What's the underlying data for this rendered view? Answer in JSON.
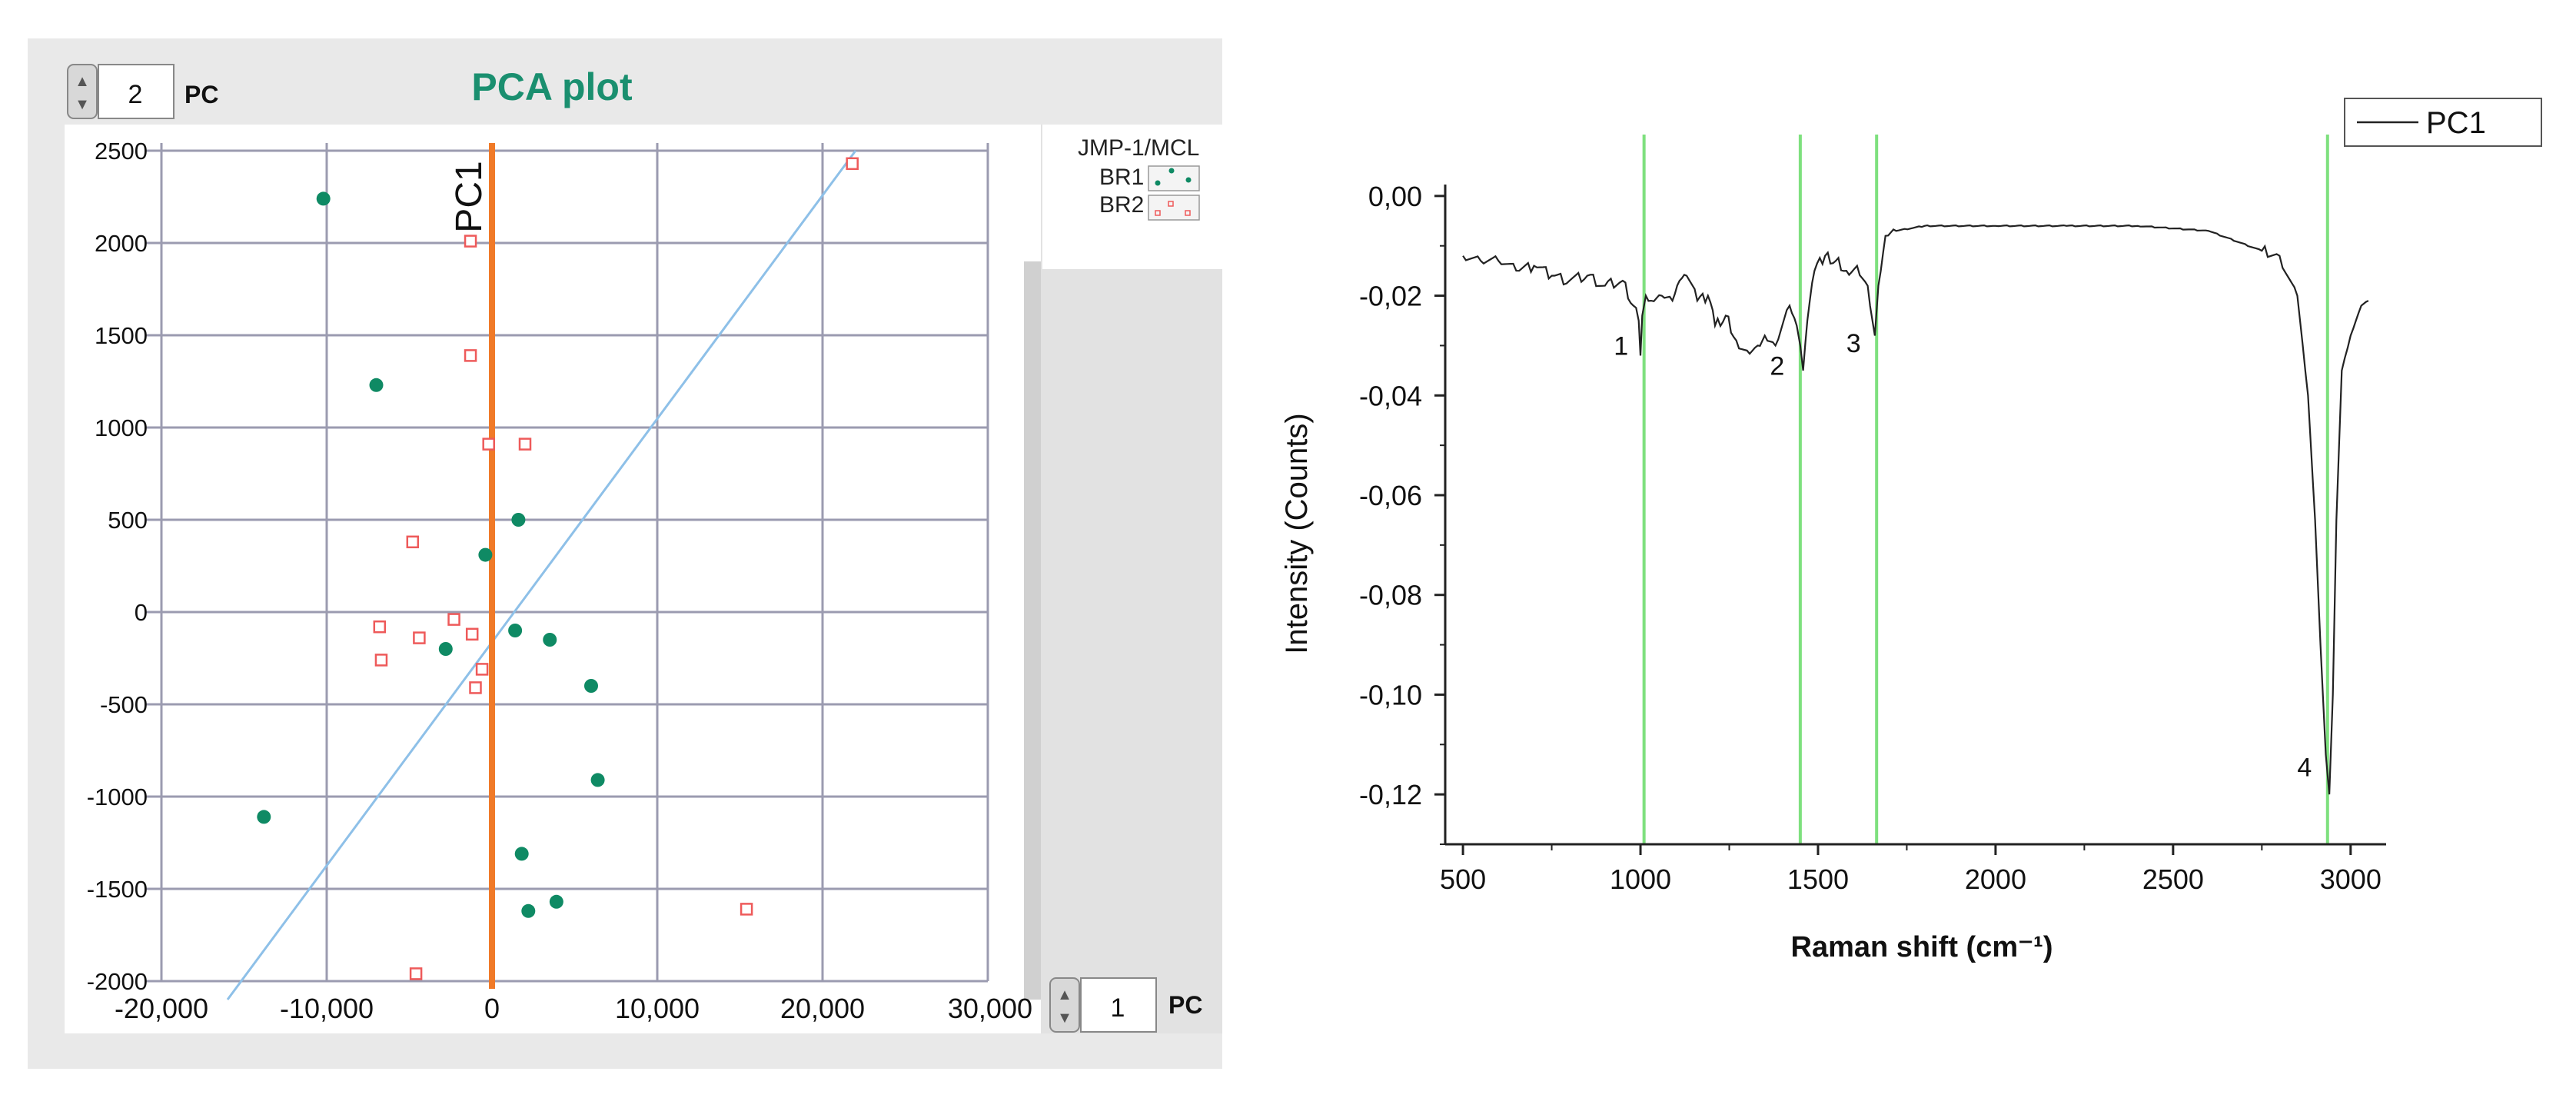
{
  "pca_panel": {
    "title": "PCA plot",
    "y_selector": {
      "value": "2",
      "label": "PC"
    },
    "x_selector": {
      "value": "1",
      "label": "PC"
    },
    "legend_title": "JMP-1/MCL",
    "colors": {
      "panel_bg": "#e9e9e9",
      "plot_bg": "#ffffff",
      "grid": "#9b9bb0",
      "title": "#1a8f6f",
      "br1": "#0f8a64",
      "br2": "#ee5a5a",
      "pc1_line": "#f07a28",
      "fit_line": "#8ec0e8"
    }
  },
  "spectrum_panel": {
    "colors": {
      "line": "#222222",
      "marker": "#7ee07e"
    }
  },
  "chart_data": [
    {
      "type": "scatter",
      "title": "PCA plot",
      "xlabel": "",
      "ylabel": "",
      "xlim": [
        -20000,
        30000
      ],
      "ylim": [
        -2000,
        2500
      ],
      "xticks": [
        -20000,
        -10000,
        0,
        10000,
        20000,
        30000
      ],
      "xtick_labels": [
        "-20,000",
        "-10,000",
        "0",
        "10,000",
        "20,000",
        "30,000"
      ],
      "yticks": [
        2500,
        2000,
        1500,
        1000,
        500,
        0,
        -500,
        -1000,
        -1500,
        -2000
      ],
      "grid": true,
      "legend_position": "top-right outside",
      "series": [
        {
          "name": "BR1",
          "marker": "filled-circle",
          "points": [
            [
              -10200,
              2240
            ],
            [
              -7000,
              1230
            ],
            [
              -13800,
              -1110
            ],
            [
              -2800,
              -200
            ],
            [
              -400,
              310
            ],
            [
              1600,
              500
            ],
            [
              1400,
              -100
            ],
            [
              3500,
              -150
            ],
            [
              6000,
              -400
            ],
            [
              6400,
              -910
            ],
            [
              1800,
              -1310
            ],
            [
              2200,
              -1620
            ],
            [
              3900,
              -1570
            ]
          ]
        },
        {
          "name": "BR2",
          "marker": "open-square",
          "points": [
            [
              21800,
              2430
            ],
            [
              -1300,
              2010
            ],
            [
              -1300,
              1390
            ],
            [
              -200,
              910
            ],
            [
              2000,
              910
            ],
            [
              -4800,
              380
            ],
            [
              -2300,
              -40
            ],
            [
              -1200,
              -120
            ],
            [
              -6800,
              -80
            ],
            [
              -4400,
              -140
            ],
            [
              -6700,
              -260
            ],
            [
              -600,
              -310
            ],
            [
              -1000,
              -410
            ],
            [
              15400,
              -1610
            ],
            [
              -4600,
              -1960
            ]
          ]
        }
      ],
      "annotations": [
        {
          "type": "vertical-line",
          "x": 0,
          "label": "PC1"
        },
        {
          "type": "fit-line",
          "from": [
            -16000,
            -2100
          ],
          "to": [
            22000,
            2500
          ]
        }
      ]
    },
    {
      "type": "line",
      "title": "",
      "xlabel": "Raman shift (cm⁻¹)",
      "ylabel": "Intensity (Counts)",
      "xlim": [
        450,
        3100
      ],
      "ylim": [
        -0.13,
        0.01
      ],
      "xticks": [
        500,
        1000,
        1500,
        2000,
        2500,
        3000
      ],
      "yticks": [
        0.0,
        -0.02,
        -0.04,
        -0.06,
        -0.08,
        -0.1,
        -0.12
      ],
      "ytick_labels": [
        "0,00",
        "-0,02",
        "-0,04",
        "-0,06",
        "-0,08",
        "-0,10",
        "-0,12"
      ],
      "grid": false,
      "legend_position": "top-right",
      "series": [
        {
          "name": "PC1",
          "x": [
            500,
            550,
            600,
            650,
            700,
            750,
            800,
            850,
            900,
            950,
            980,
            995,
            1000,
            1005,
            1015,
            1030,
            1060,
            1090,
            1110,
            1130,
            1160,
            1190,
            1210,
            1240,
            1270,
            1300,
            1330,
            1350,
            1380,
            1420,
            1440,
            1450,
            1458,
            1470,
            1490,
            1520,
            1550,
            1580,
            1610,
            1640,
            1660,
            1670,
            1690,
            1720,
            1800,
            2000,
            2200,
            2400,
            2600,
            2750,
            2800,
            2850,
            2880,
            2900,
            2915,
            2930,
            2940,
            2950,
            2960,
            2975,
            3000,
            3030,
            3050
          ],
          "y": [
            -0.012,
            -0.013,
            -0.013,
            -0.015,
            -0.014,
            -0.016,
            -0.017,
            -0.016,
            -0.018,
            -0.017,
            -0.022,
            -0.025,
            -0.032,
            -0.024,
            -0.02,
            -0.021,
            -0.02,
            -0.021,
            -0.017,
            -0.016,
            -0.021,
            -0.02,
            -0.026,
            -0.024,
            -0.029,
            -0.031,
            -0.03,
            -0.028,
            -0.03,
            -0.022,
            -0.026,
            -0.03,
            -0.035,
            -0.025,
            -0.015,
            -0.012,
            -0.013,
            -0.015,
            -0.014,
            -0.018,
            -0.028,
            -0.018,
            -0.008,
            -0.007,
            -0.006,
            -0.006,
            -0.006,
            -0.006,
            -0.007,
            -0.011,
            -0.012,
            -0.02,
            -0.04,
            -0.065,
            -0.09,
            -0.112,
            -0.12,
            -0.1,
            -0.065,
            -0.035,
            -0.028,
            -0.022,
            -0.021
          ]
        }
      ],
      "peak_markers": [
        {
          "x": 1010,
          "label": "1"
        },
        {
          "x": 1450,
          "label": "2"
        },
        {
          "x": 1665,
          "label": "3"
        },
        {
          "x": 2935,
          "label": "4"
        }
      ]
    }
  ]
}
